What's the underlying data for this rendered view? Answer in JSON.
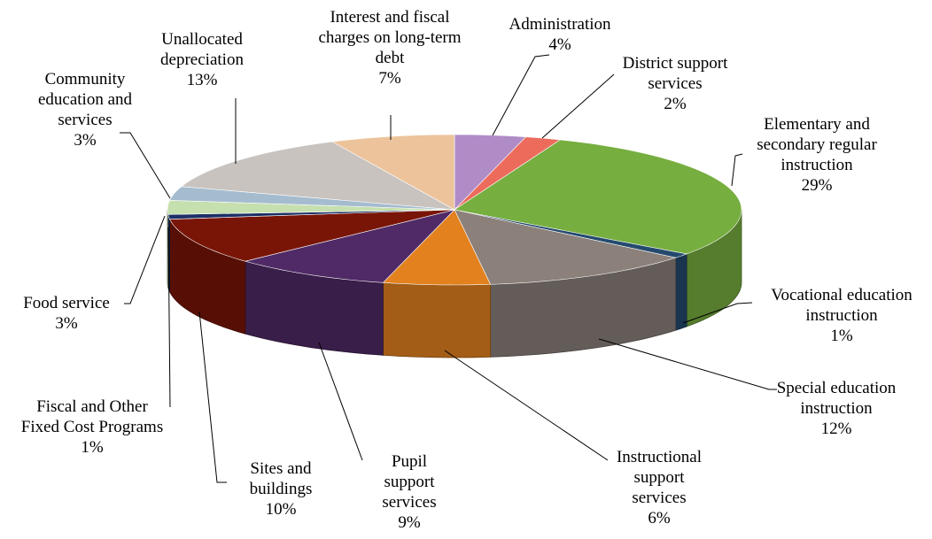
{
  "chart_data": {
    "type": "pie",
    "title": "",
    "slices": [
      {
        "name": "Administration",
        "lines": [
          "Administration"
        ],
        "value": 4,
        "pct": "4%",
        "color": "#b08cc7"
      },
      {
        "name": "District support services",
        "lines": [
          "District support",
          "services"
        ],
        "value": 2,
        "pct": "2%",
        "color": "#ec6b5b"
      },
      {
        "name": "Elementary and secondary regular instruction",
        "lines": [
          "Elementary and",
          "secondary regular",
          "instruction"
        ],
        "value": 29,
        "pct": "29%",
        "color": "#76ae3f"
      },
      {
        "name": "Vocational education instruction",
        "lines": [
          "Vocational education",
          "instruction"
        ],
        "value": 1,
        "pct": "1%",
        "color": "#244a6e"
      },
      {
        "name": "Special education instruction",
        "lines": [
          "Special education",
          "instruction"
        ],
        "value": 12,
        "pct": "12%",
        "color": "#8b807a"
      },
      {
        "name": "Instructional support services",
        "lines": [
          "Instructional",
          "support",
          "services"
        ],
        "value": 6,
        "pct": "6%",
        "color": "#e2811e"
      },
      {
        "name": "Pupil support services",
        "lines": [
          "Pupil",
          "support",
          "services"
        ],
        "value": 9,
        "pct": "9%",
        "color": "#4f2a66"
      },
      {
        "name": "Sites and buildings",
        "lines": [
          "Sites and",
          "buildings"
        ],
        "value": 10,
        "pct": "10%",
        "color": "#791507"
      },
      {
        "name": "Fiscal and Other Fixed Cost Programs",
        "lines": [
          "Fiscal and Other",
          "Fixed Cost Programs"
        ],
        "value": 1,
        "pct": "1%",
        "color": "#1c2f66"
      },
      {
        "name": "Food service",
        "lines": [
          "Food service"
        ],
        "value": 3,
        "pct": "3%",
        "color": "#c5dfae"
      },
      {
        "name": "Community education and services",
        "lines": [
          "Community",
          "education and",
          "services"
        ],
        "value": 3,
        "pct": "3%",
        "color": "#a5bccf"
      },
      {
        "name": "Unallocated depreciation",
        "lines": [
          "Unallocated",
          "depreciation"
        ],
        "value": 13,
        "pct": "13%",
        "color": "#c8c3bf"
      },
      {
        "name": "Interest and fiscal charges on long-term debt",
        "lines": [
          "Interest and fiscal",
          "charges on long-term",
          "debt"
        ],
        "value": 7,
        "pct": "7%",
        "color": "#ecc39b"
      }
    ]
  }
}
